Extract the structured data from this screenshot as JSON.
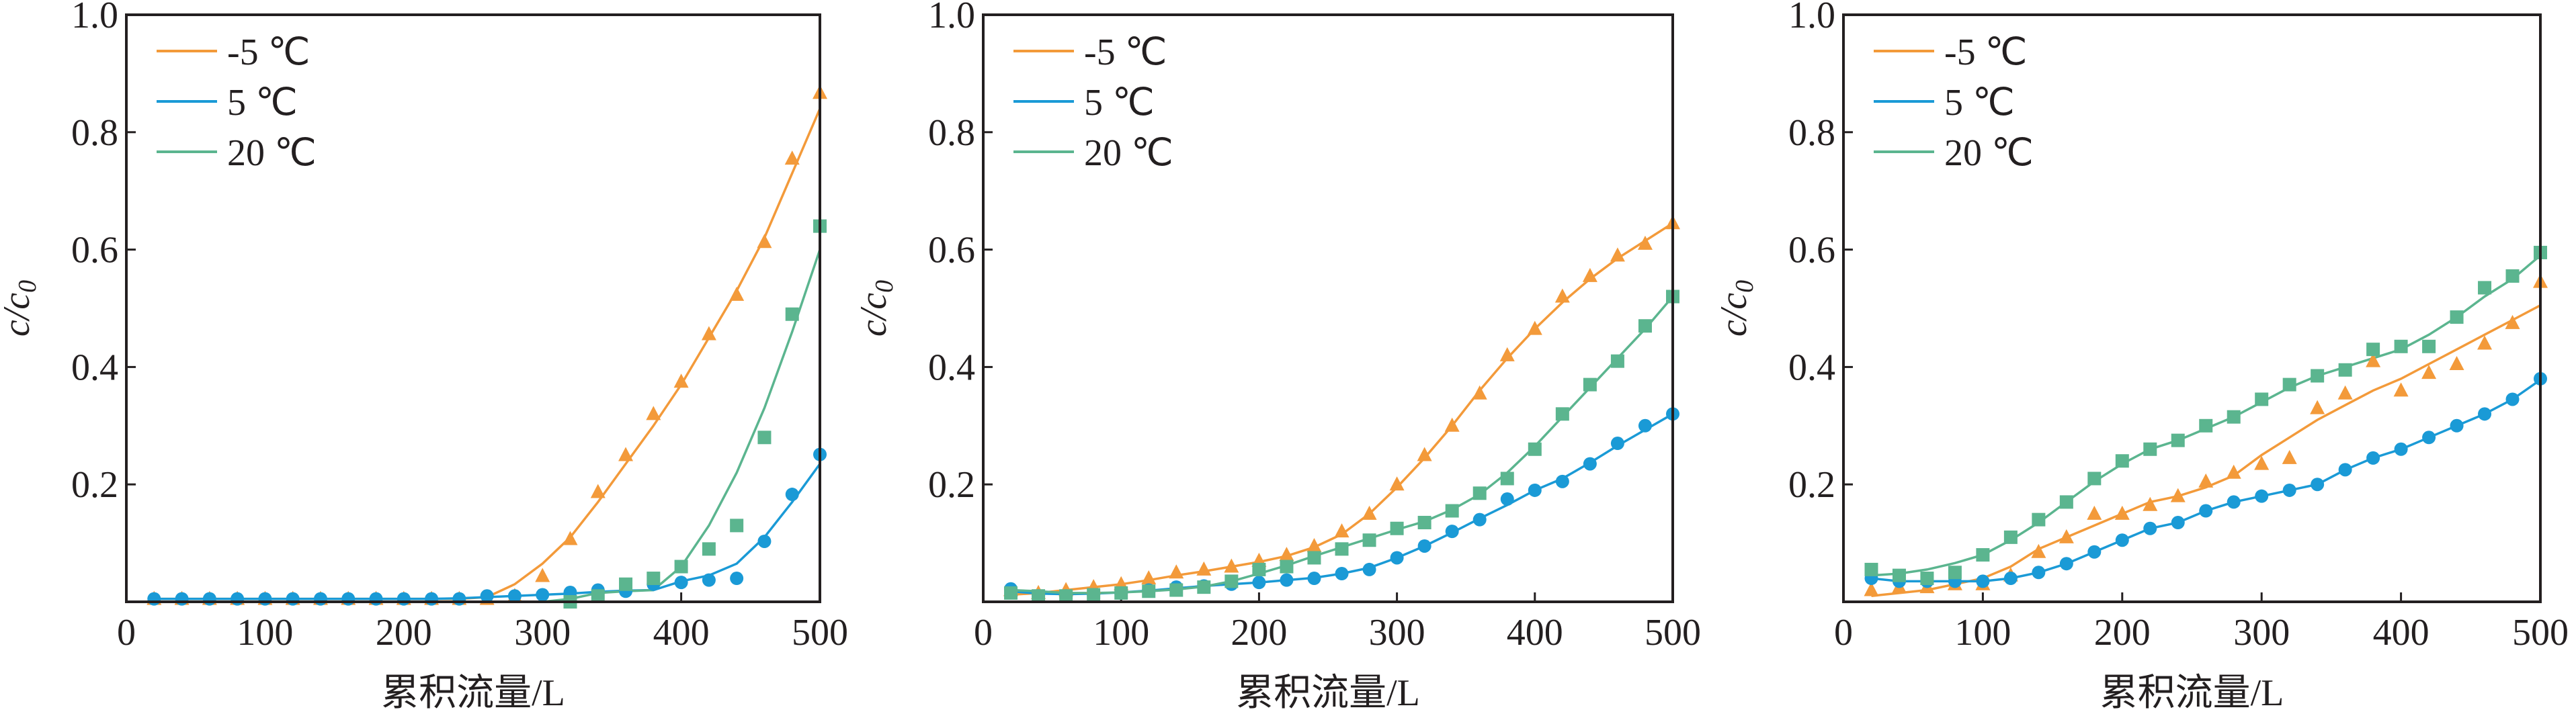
{
  "chart_data": [
    {
      "type": "line",
      "xlabel": "累积流量/L",
      "ylabel": "c/c",
      "ylabel_sub": "0",
      "xlim": [
        0,
        500
      ],
      "ylim": [
        0,
        1.0
      ],
      "xticks": [
        "0",
        "100",
        "200",
        "300",
        "400",
        "500"
      ],
      "yticks": [
        "0.2",
        "0.4",
        "0.6",
        "0.8",
        "1.0"
      ],
      "legend_placement": "top-left",
      "x": [
        20,
        40,
        60,
        80,
        100,
        120,
        140,
        160,
        180,
        200,
        220,
        240,
        260,
        280,
        300,
        320,
        340,
        360,
        380,
        400,
        420,
        440,
        460,
        480,
        500
      ],
      "series": [
        {
          "name": "-5 ℃",
          "marker": "triangle",
          "color": "#F39A3A",
          "points": [
            0.005,
            0.005,
            0.005,
            0.005,
            0.005,
            0.005,
            0.005,
            0.005,
            0.005,
            0.005,
            0.005,
            0.005,
            0.005,
            0.01,
            0.044,
            0.107,
            0.187,
            0.25,
            0.32,
            0.375,
            0.456,
            0.523,
            0.613,
            0.755,
            0.867
          ],
          "fit": [
            0.005,
            0.005,
            0.005,
            0.005,
            0.005,
            0.005,
            0.005,
            0.005,
            0.005,
            0.005,
            0.005,
            0.005,
            0.008,
            0.03,
            0.065,
            0.11,
            0.17,
            0.235,
            0.3,
            0.37,
            0.45,
            0.53,
            0.62,
            0.73,
            0.84
          ]
        },
        {
          "name": "5 ℃",
          "marker": "circle",
          "color": "#1A9AD6",
          "points": [
            0.005,
            0.005,
            0.005,
            0.005,
            0.005,
            0.005,
            0.005,
            0.005,
            0.005,
            0.005,
            0.005,
            0.005,
            0.01,
            0.01,
            0.012,
            0.016,
            0.02,
            0.018,
            0.03,
            0.033,
            0.037,
            0.04,
            0.103,
            0.183,
            0.251
          ],
          "fit": [
            0.005,
            0.005,
            0.005,
            0.005,
            0.005,
            0.005,
            0.005,
            0.005,
            0.005,
            0.005,
            0.005,
            0.006,
            0.008,
            0.01,
            0.012,
            0.014,
            0.017,
            0.019,
            0.02,
            0.035,
            0.045,
            0.065,
            0.11,
            0.17,
            0.235
          ]
        },
        {
          "name": "20 ℃",
          "marker": "square",
          "color": "#5BB58F",
          "points": [
            null,
            null,
            null,
            null,
            null,
            null,
            null,
            null,
            null,
            null,
            null,
            null,
            null,
            null,
            null,
            0.0,
            0.01,
            0.03,
            0.04,
            0.06,
            0.09,
            0.13,
            0.28,
            0.49,
            0.64
          ],
          "fit": [
            null,
            null,
            null,
            null,
            null,
            null,
            null,
            null,
            null,
            null,
            null,
            null,
            null,
            null,
            0.0,
            0.005,
            0.015,
            0.018,
            0.02,
            0.06,
            0.13,
            0.22,
            0.33,
            0.46,
            0.6
          ]
        }
      ]
    },
    {
      "type": "line",
      "xlabel": "累积流量/L",
      "ylabel": "c/c",
      "ylabel_sub": "0",
      "xlim": [
        0,
        500
      ],
      "ylim": [
        0,
        1.0
      ],
      "xticks": [
        "0",
        "100",
        "200",
        "300",
        "400",
        "500"
      ],
      "yticks": [
        "0.2",
        "0.4",
        "0.6",
        "0.8",
        "1.0"
      ],
      "legend_placement": "top-left",
      "x": [
        20,
        40,
        60,
        80,
        100,
        120,
        140,
        160,
        180,
        200,
        220,
        240,
        260,
        280,
        300,
        320,
        340,
        360,
        380,
        400,
        420,
        440,
        460,
        480,
        500
      ],
      "series": [
        {
          "name": "-5 ℃",
          "marker": "triangle",
          "color": "#F39A3A",
          "points": [
            0.02,
            0.015,
            0.02,
            0.025,
            0.03,
            0.04,
            0.05,
            0.055,
            0.06,
            0.07,
            0.08,
            0.095,
            0.12,
            0.15,
            0.2,
            0.25,
            0.3,
            0.355,
            0.42,
            0.465,
            0.52,
            0.555,
            0.59,
            0.61,
            0.645
          ],
          "fit": [
            0.012,
            0.015,
            0.02,
            0.025,
            0.03,
            0.037,
            0.045,
            0.052,
            0.06,
            0.068,
            0.078,
            0.093,
            0.115,
            0.15,
            0.195,
            0.245,
            0.3,
            0.36,
            0.415,
            0.465,
            0.51,
            0.55,
            0.585,
            0.615,
            0.645
          ]
        },
        {
          "name": "5 ℃",
          "marker": "circle",
          "color": "#1A9AD6",
          "points": [
            0.022,
            0.01,
            0.01,
            0.012,
            0.015,
            0.02,
            0.025,
            0.027,
            0.03,
            0.033,
            0.037,
            0.04,
            0.048,
            0.055,
            0.075,
            0.095,
            0.12,
            0.14,
            0.175,
            0.19,
            0.205,
            0.235,
            0.27,
            0.3,
            0.32
          ],
          "fit": [
            0.018,
            0.014,
            0.013,
            0.014,
            0.016,
            0.019,
            0.023,
            0.027,
            0.03,
            0.033,
            0.037,
            0.041,
            0.048,
            0.058,
            0.075,
            0.095,
            0.118,
            0.142,
            0.165,
            0.19,
            0.21,
            0.237,
            0.266,
            0.293,
            0.32
          ]
        },
        {
          "name": "20 ℃",
          "marker": "square",
          "color": "#5BB58F",
          "points": [
            0.015,
            0.01,
            0.01,
            0.012,
            0.015,
            0.018,
            0.02,
            0.025,
            0.035,
            0.055,
            0.06,
            0.075,
            0.09,
            0.105,
            0.125,
            0.135,
            0.155,
            0.185,
            0.21,
            0.26,
            0.32,
            0.37,
            0.41,
            0.47,
            0.52
          ],
          "fit": [
            0.02,
            0.018,
            0.015,
            0.015,
            0.016,
            0.018,
            0.021,
            0.026,
            0.035,
            0.048,
            0.062,
            0.078,
            0.093,
            0.108,
            0.123,
            0.137,
            0.157,
            0.183,
            0.22,
            0.265,
            0.315,
            0.365,
            0.415,
            0.465,
            0.52
          ]
        }
      ]
    },
    {
      "type": "line",
      "xlabel": "累积流量/L",
      "ylabel": "c/c",
      "ylabel_sub": "0",
      "xlim": [
        0,
        500
      ],
      "ylim": [
        0,
        1.0
      ],
      "xticks": [
        "0",
        "100",
        "200",
        "300",
        "400",
        "500"
      ],
      "yticks": [
        "0.2",
        "0.4",
        "0.6",
        "0.8",
        "1.0"
      ],
      "legend_placement": "top-left",
      "x": [
        20,
        40,
        60,
        80,
        100,
        120,
        140,
        160,
        180,
        200,
        220,
        240,
        260,
        280,
        300,
        320,
        340,
        360,
        380,
        400,
        420,
        440,
        460,
        480,
        500
      ],
      "series": [
        {
          "name": "-5 ℃",
          "marker": "triangle",
          "color": "#F39A3A",
          "points": [
            0.02,
            0.025,
            0.025,
            0.03,
            0.03,
            0.045,
            0.085,
            0.11,
            0.15,
            0.15,
            0.165,
            0.18,
            0.205,
            0.22,
            0.235,
            0.245,
            0.33,
            0.355,
            0.41,
            0.36,
            0.39,
            0.405,
            0.44,
            0.475,
            0.545
          ],
          "fit": [
            0.01,
            0.015,
            0.02,
            0.03,
            0.04,
            0.06,
            0.09,
            0.11,
            0.13,
            0.15,
            0.17,
            0.18,
            0.195,
            0.215,
            0.25,
            0.28,
            0.31,
            0.335,
            0.36,
            0.38,
            0.405,
            0.43,
            0.455,
            0.48,
            0.505
          ]
        },
        {
          "name": "5 ℃",
          "marker": "circle",
          "color": "#1A9AD6",
          "points": [
            0.04,
            0.035,
            0.035,
            0.035,
            0.035,
            0.04,
            0.05,
            0.065,
            0.085,
            0.105,
            0.125,
            0.135,
            0.155,
            0.17,
            0.18,
            0.19,
            0.2,
            0.225,
            0.245,
            0.26,
            0.28,
            0.3,
            0.32,
            0.345,
            0.38
          ],
          "fit": [
            0.04,
            0.035,
            0.035,
            0.035,
            0.035,
            0.04,
            0.05,
            0.065,
            0.085,
            0.105,
            0.125,
            0.135,
            0.155,
            0.17,
            0.18,
            0.19,
            0.2,
            0.225,
            0.245,
            0.26,
            0.28,
            0.3,
            0.32,
            0.345,
            0.378
          ]
        },
        {
          "name": "20 ℃",
          "marker": "square",
          "color": "#5BB58F",
          "points": [
            0.055,
            0.045,
            0.04,
            0.05,
            0.08,
            0.11,
            0.14,
            0.17,
            0.21,
            0.24,
            0.26,
            0.275,
            0.3,
            0.315,
            0.345,
            0.37,
            0.385,
            0.395,
            0.43,
            0.435,
            0.435,
            0.485,
            0.535,
            0.555,
            0.595
          ],
          "fit": [
            0.045,
            0.048,
            0.055,
            0.066,
            0.08,
            0.105,
            0.135,
            0.17,
            0.205,
            0.235,
            0.26,
            0.275,
            0.295,
            0.315,
            0.34,
            0.365,
            0.385,
            0.4,
            0.415,
            0.43,
            0.455,
            0.485,
            0.52,
            0.55,
            0.59
          ]
        }
      ]
    }
  ]
}
